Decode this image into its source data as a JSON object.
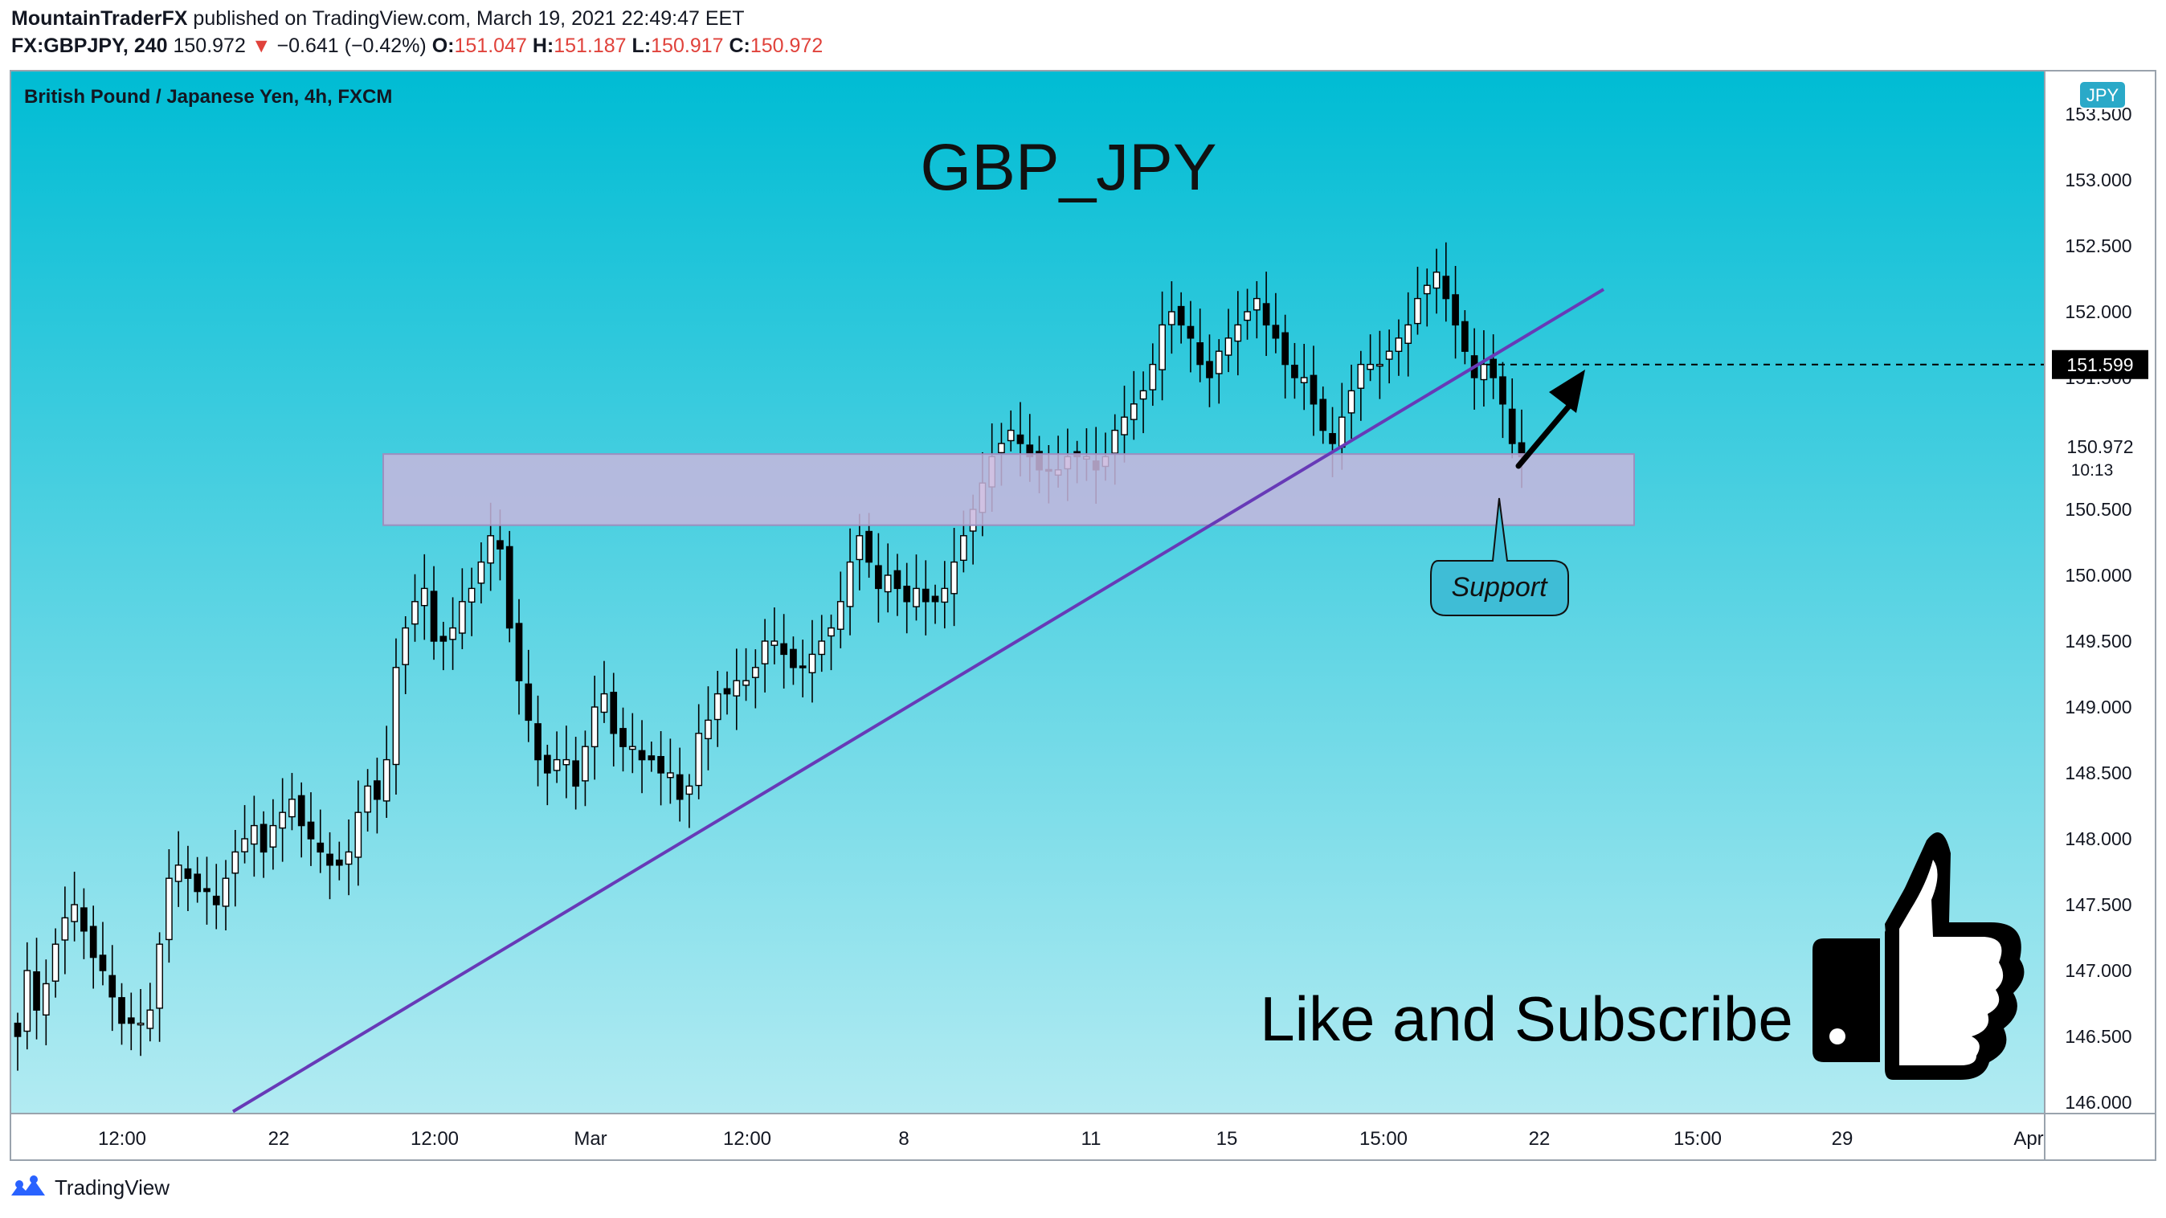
{
  "header": {
    "author": "MountainTraderFX",
    "published": "published on TradingView.com, March 19, 2021 22:49:47 EET",
    "symbol": "FX:GBPJPY, 240",
    "last": "150.972",
    "change": "−0.641 (−0.42%)",
    "o_label": "O:",
    "o_value": "151.047",
    "h_label": "H:",
    "h_value": "151.187",
    "l_label": "L:",
    "l_value": "150.917",
    "c_label": "C:",
    "c_value": "150.972"
  },
  "footer": {
    "brand": "TradingView"
  },
  "colors": {
    "bg_top": "#00bcd4",
    "bg_bottom": "#b2ebf2",
    "trendline": "#673ab7",
    "zone_fill": "#c8b6dd",
    "candle_up": "#ffffff",
    "candle_down": "#000000"
  },
  "chart_data": {
    "type": "candlestick",
    "instrument": "British Pound / Japanese Yen, 4h, FXCM",
    "currency_badge": "JPY",
    "title": "GBP_JPY",
    "yaxis_ticks": [
      "153.500",
      "153.000",
      "152.500",
      "152.000",
      "151.500",
      "151.000",
      "150.500",
      "150.000",
      "149.500",
      "149.000",
      "148.500",
      "148.000",
      "147.500",
      "147.000",
      "146.500",
      "146.000"
    ],
    "ylim": [
      145.9,
      153.6
    ],
    "xaxis_ticks": [
      "12:00",
      "22",
      "12:00",
      "Mar",
      "12:00",
      "8",
      "11",
      "15",
      "15:00",
      "22",
      "15:00",
      "29",
      "Apr"
    ],
    "price_label": "151.599",
    "current_price": "150.972",
    "countdown": "10:13",
    "support_zone": {
      "low": 150.38,
      "high": 150.92
    },
    "trendline": {
      "from_price": 145.93,
      "to_price": 152.17
    },
    "support_label": "Support",
    "cta": "Like and Subscribe",
    "closes": [
      146.5,
      147.0,
      146.7,
      146.9,
      147.2,
      147.4,
      147.5,
      147.3,
      147.1,
      147.0,
      146.8,
      146.6,
      146.6,
      146.6,
      146.7,
      147.2,
      147.7,
      147.8,
      147.7,
      147.6,
      147.6,
      147.5,
      147.7,
      147.9,
      148.0,
      148.1,
      147.9,
      148.1,
      148.2,
      148.3,
      148.1,
      148.0,
      147.9,
      147.8,
      147.8,
      147.9,
      148.2,
      148.4,
      148.3,
      148.6,
      149.3,
      149.6,
      149.8,
      149.9,
      149.5,
      149.5,
      149.6,
      149.8,
      149.9,
      150.1,
      150.3,
      150.2,
      149.6,
      149.2,
      148.9,
      148.6,
      148.5,
      148.6,
      148.6,
      148.4,
      148.7,
      149.0,
      149.1,
      148.8,
      148.7,
      148.7,
      148.6,
      148.6,
      148.5,
      148.5,
      148.3,
      148.4,
      148.8,
      148.9,
      149.1,
      149.1,
      149.2,
      149.2,
      149.3,
      149.5,
      149.5,
      149.4,
      149.3,
      149.3,
      149.4,
      149.5,
      149.6,
      149.8,
      150.1,
      150.3,
      150.1,
      149.9,
      150.0,
      149.9,
      149.8,
      149.9,
      149.8,
      149.8,
      149.9,
      150.1,
      150.3,
      150.5,
      150.7,
      150.9,
      151.0,
      151.1,
      151.0,
      150.9,
      150.8,
      150.8,
      150.8,
      150.9,
      150.9,
      150.9,
      150.8,
      150.9,
      151.1,
      151.2,
      151.3,
      151.4,
      151.6,
      151.9,
      152.0,
      151.9,
      151.8,
      151.6,
      151.5,
      151.7,
      151.8,
      151.9,
      152.0,
      152.1,
      151.9,
      151.8,
      151.6,
      151.5,
      151.5,
      151.3,
      151.1,
      151.0,
      151.2,
      151.4,
      151.6,
      151.6,
      151.6,
      151.7,
      151.8,
      151.9,
      152.1,
      152.2,
      152.3,
      152.1,
      151.9,
      151.7,
      151.5,
      151.6,
      151.5,
      151.3,
      151.0,
      150.9
    ]
  }
}
